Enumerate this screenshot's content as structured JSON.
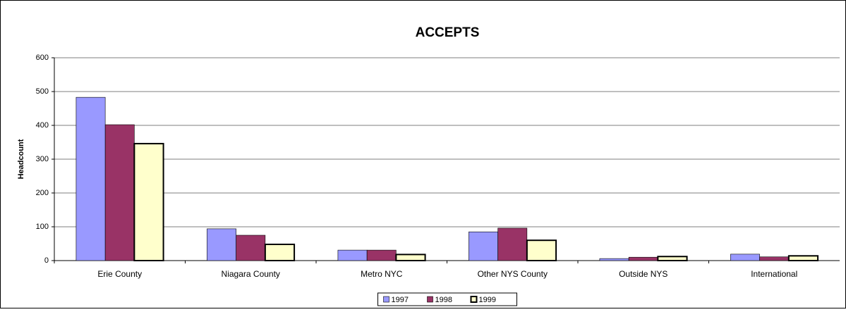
{
  "chart_data": {
    "type": "bar",
    "title": "ACCEPTS",
    "y_label": "Headcount",
    "categories": [
      "Erie County",
      "Niagara County",
      "Metro NYC",
      "Other NYS County",
      "Outside NYS",
      "International"
    ],
    "series": [
      {
        "name": "1997",
        "color": "#9999ff",
        "values": [
          483,
          94,
          31,
          85,
          6,
          19
        ]
      },
      {
        "name": "1998",
        "color": "#993366",
        "values": [
          402,
          75,
          31,
          96,
          10,
          11
        ]
      },
      {
        "name": "1999",
        "color": "#ffffcc",
        "values": [
          346,
          48,
          18,
          60,
          12,
          14
        ]
      }
    ],
    "ylim": [
      0,
      600
    ],
    "yticks": [
      0,
      100,
      200,
      300,
      400,
      500,
      600
    ],
    "grid": true,
    "legend": "bottom"
  }
}
